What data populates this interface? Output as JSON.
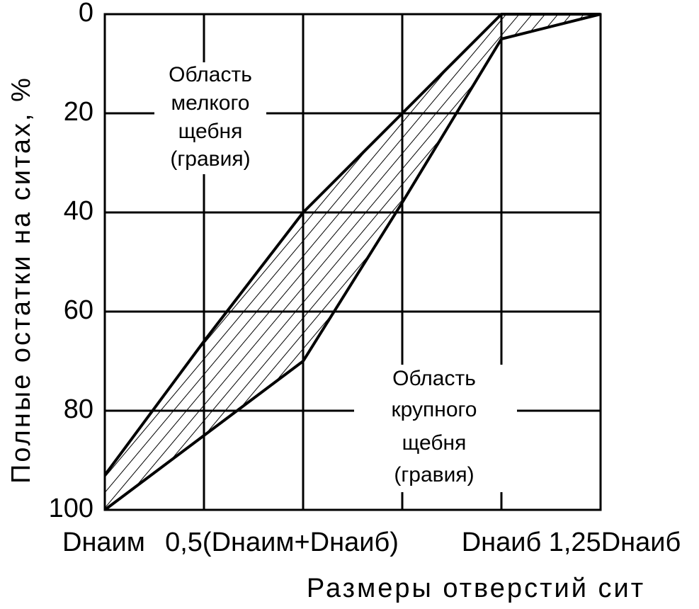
{
  "chart_data": {
    "type": "line",
    "title_y": "Полные остатки на ситах, %",
    "title_x": "Размеры отверстий сит",
    "x": [
      0,
      0.25,
      0.5,
      0.75,
      1,
      1.25
    ],
    "series": [
      {
        "color": "#000000",
        "values": [
          93,
          66,
          40,
          20,
          0,
          0
        ]
      },
      {
        "color": "#000000",
        "values": [
          100,
          85,
          70,
          38,
          5,
          0
        ]
      }
    ],
    "xlim": [
      0,
      1.25
    ],
    "xticks": [
      {
        "value": 0,
        "label": "Dнаим"
      },
      {
        "value": 0.5,
        "label": "0,5(Dнаим+Dнаиб)"
      },
      {
        "value": 1,
        "label": "Dнаиб"
      },
      {
        "value": 1.25,
        "label": "1,25Dнаиб"
      }
    ],
    "xgrid": [
      0.25,
      0.5,
      0.75,
      1
    ],
    "ylim": [
      100,
      0
    ],
    "yticks": [
      0,
      20,
      40,
      60,
      80,
      100
    ],
    "grid": true,
    "fill_between": true,
    "annotations": [
      [
        "Область",
        "мелкого",
        "щебня",
        "(гравия)"
      ],
      [
        "Область",
        "крупного",
        "щебня",
        "(гравия)"
      ]
    ]
  }
}
